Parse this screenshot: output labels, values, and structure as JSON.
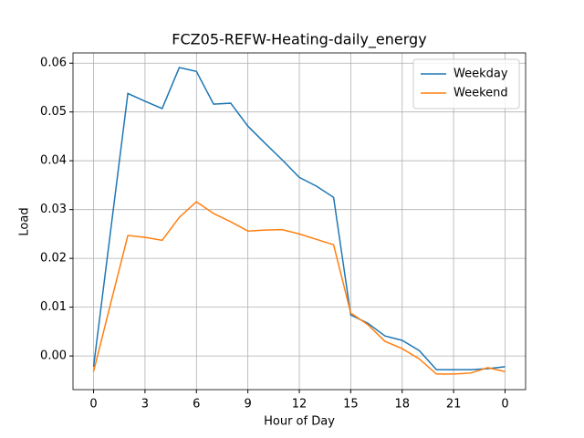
{
  "chart_data": {
    "type": "line",
    "title": "FCZ05-REFW-Heating-daily_energy",
    "xlabel": "Hour of Day",
    "ylabel": "Load",
    "x": [
      0,
      1,
      2,
      3,
      4,
      5,
      6,
      7,
      8,
      9,
      10,
      11,
      12,
      13,
      14,
      15,
      16,
      17,
      18,
      19,
      20,
      21,
      22,
      23,
      24
    ],
    "series": [
      {
        "name": "Weekday",
        "color": "#1f77b4",
        "values": [
          -0.0022,
          0.0258,
          0.0538,
          0.0522,
          0.0507,
          0.0591,
          0.0583,
          0.0516,
          0.0518,
          0.0471,
          0.0436,
          0.0402,
          0.0366,
          0.0348,
          0.0325,
          0.0084,
          0.0067,
          0.0041,
          0.0032,
          0.0011,
          -0.0028,
          -0.0028,
          -0.0028,
          -0.0026,
          -0.0022
        ]
      },
      {
        "name": "Weekend",
        "color": "#ff7f0e",
        "values": [
          -0.0032,
          0.0108,
          0.0247,
          0.0243,
          0.0237,
          0.0284,
          0.0316,
          0.0292,
          0.0275,
          0.0256,
          0.0258,
          0.0259,
          0.025,
          0.0239,
          0.0228,
          0.0088,
          0.0064,
          0.003,
          0.0015,
          -0.0006,
          -0.0037,
          -0.0037,
          -0.0035,
          -0.0024,
          -0.0032
        ]
      }
    ],
    "xlim": [
      -1.2,
      25.2
    ],
    "xticks": [
      0,
      3,
      6,
      9,
      12,
      15,
      18,
      21,
      {
        "value": 24,
        "label": "0"
      }
    ],
    "ylim": [
      -0.0069,
      0.0621
    ],
    "yticks": [
      {
        "value": 0,
        "label": "0.00"
      },
      {
        "value": 0.01,
        "label": "0.01"
      },
      {
        "value": 0.02,
        "label": "0.02"
      },
      {
        "value": 0.03,
        "label": "0.03"
      },
      {
        "value": 0.04,
        "label": "0.04"
      },
      {
        "value": 0.05,
        "label": "0.05"
      },
      {
        "value": 0.06,
        "label": "0.06"
      }
    ],
    "grid": true,
    "legend": "upper-right"
  }
}
